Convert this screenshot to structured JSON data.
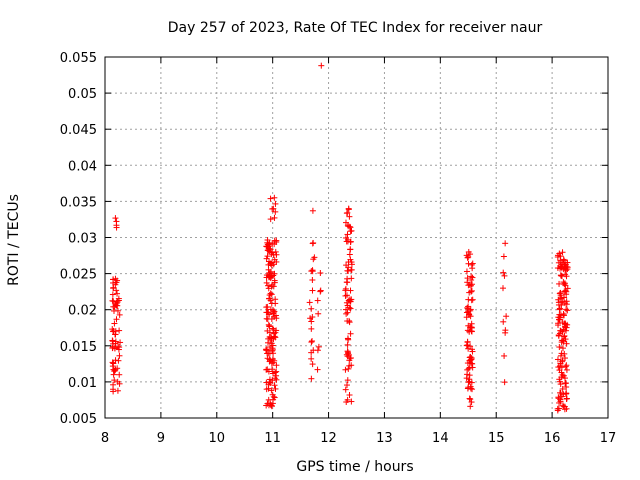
{
  "chart_data": {
    "type": "scatter",
    "title": "Day 257 of 2023, Rate Of TEC Index for receiver naur",
    "xlabel": "GPS time / hours",
    "ylabel": "ROTI / TECUs",
    "xlim": [
      8,
      17
    ],
    "ylim": [
      0.005,
      0.055
    ],
    "xticks": [
      8,
      9,
      10,
      11,
      12,
      13,
      14,
      15,
      16,
      17
    ],
    "xtick_labels": [
      "8",
      "9",
      "10",
      "11",
      "12",
      "13",
      "14",
      "15",
      "16",
      "17"
    ],
    "yticks": [
      0.005,
      0.01,
      0.015,
      0.02,
      0.025,
      0.03,
      0.035,
      0.04,
      0.045,
      0.05,
      0.055
    ],
    "ytick_labels": [
      "0.005",
      "0.01",
      "0.015",
      "0.02",
      "0.025",
      "0.03",
      "0.035",
      "0.04",
      "0.045",
      "0.05",
      "0.055"
    ],
    "grid": true,
    "marker": "plus",
    "color": "#ff0000",
    "series": [
      {
        "name": "ROTI",
        "clusters": [
          {
            "x_min": 8.13,
            "x_max": 8.27,
            "y_min": 0.0085,
            "y_max": 0.0245,
            "count": 70
          },
          {
            "x_min": 8.16,
            "x_max": 8.22,
            "y_min": 0.031,
            "y_max": 0.0327,
            "count": 4
          },
          {
            "x_min": 10.88,
            "x_max": 11.07,
            "y_min": 0.0065,
            "y_max": 0.0298,
            "count": 160
          },
          {
            "x_min": 10.95,
            "x_max": 11.06,
            "y_min": 0.032,
            "y_max": 0.0355,
            "count": 7
          },
          {
            "x_min": 11.66,
            "x_max": 11.75,
            "y_min": 0.0095,
            "y_max": 0.0295,
            "count": 22
          },
          {
            "x_min": 11.8,
            "x_max": 11.86,
            "y_min": 0.0095,
            "y_max": 0.0275,
            "count": 8
          },
          {
            "x_min": 12.3,
            "x_max": 12.42,
            "y_min": 0.0065,
            "y_max": 0.034,
            "count": 80
          },
          {
            "x_min": 14.47,
            "x_max": 14.58,
            "y_min": 0.006,
            "y_max": 0.028,
            "count": 85
          },
          {
            "x_min": 15.12,
            "x_max": 15.18,
            "y_min": 0.0073,
            "y_max": 0.0302,
            "count": 11
          },
          {
            "x_min": 16.1,
            "x_max": 16.28,
            "y_min": 0.006,
            "y_max": 0.0282,
            "count": 150
          }
        ],
        "points": [
          {
            "x": 11.87,
            "y": 0.0538
          },
          {
            "x": 11.72,
            "y": 0.0337
          },
          {
            "x": 11.03,
            "y": 0.0355
          },
          {
            "x": 12.36,
            "y": 0.034
          }
        ]
      }
    ]
  }
}
